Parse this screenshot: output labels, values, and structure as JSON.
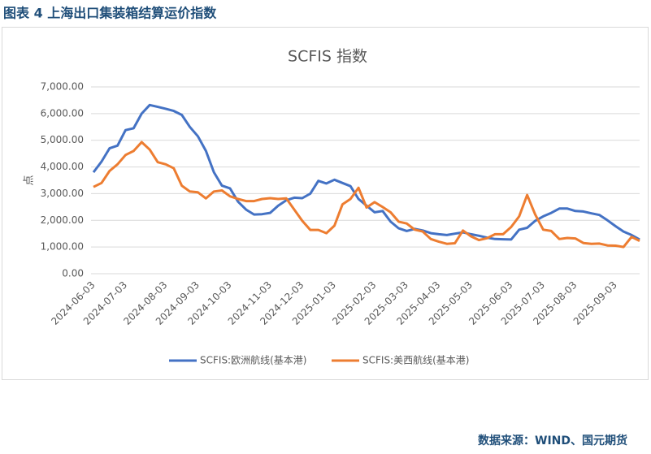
{
  "header": {
    "title": "图表 4  上海出口集装箱结算运价指数"
  },
  "source": "数据来源：WIND、国元期货",
  "chart_data": {
    "type": "line",
    "title": "SCFIS 指数",
    "y_label": "点",
    "categories": [
      "2024-06-03",
      null,
      null,
      null,
      "2024-07-03",
      null,
      null,
      null,
      null,
      "2024-08-03",
      null,
      null,
      null,
      "2024-09-03",
      null,
      null,
      null,
      "2024-10-03",
      null,
      null,
      null,
      null,
      "2024-11-03",
      null,
      null,
      null,
      "2024-12-03",
      null,
      null,
      null,
      "2025-01-03",
      null,
      null,
      null,
      null,
      "2025-02-03",
      null,
      null,
      null,
      "2025-03-03",
      null,
      null,
      null,
      "2025-04-03",
      null,
      null,
      null,
      "2025-05-03",
      null,
      null,
      null,
      null,
      "2025-06-03",
      null,
      null,
      null,
      "2025-07-03",
      null,
      null,
      null,
      "2025-08-03",
      null,
      null,
      null,
      null,
      "2025-09-03",
      null,
      null,
      null
    ],
    "series": [
      {
        "name": "SCFIS:欧洲航线(基本港)",
        "color": "#4472c4",
        "values": [
          3800,
          4200,
          4700,
          4800,
          5380,
          5450,
          6000,
          6320,
          6250,
          6180,
          6100,
          5950,
          5500,
          5150,
          4600,
          3800,
          3300,
          3200,
          2700,
          2400,
          2220,
          2230,
          2280,
          2550,
          2750,
          2850,
          2830,
          3000,
          3480,
          3380,
          3520,
          3400,
          3280,
          2800,
          2550,
          2300,
          2350,
          1950,
          1700,
          1600,
          1680,
          1620,
          1520,
          1480,
          1450,
          1500,
          1550,
          1480,
          1420,
          1350,
          1300,
          1290,
          1280,
          1650,
          1720,
          1980,
          2150,
          2280,
          2440,
          2440,
          2350,
          2330,
          2260,
          2200,
          2000,
          1780,
          1580,
          1450,
          1280
        ]
      },
      {
        "name": "SCFIS:美西航线(基本港)",
        "color": "#ed7d31",
        "values": [
          3250,
          3400,
          3850,
          4100,
          4450,
          4600,
          4930,
          4650,
          4180,
          4100,
          3950,
          3300,
          3080,
          3050,
          2820,
          3080,
          3120,
          2900,
          2800,
          2720,
          2720,
          2800,
          2830,
          2800,
          2820,
          2400,
          1980,
          1640,
          1640,
          1520,
          1800,
          2600,
          2800,
          3220,
          2480,
          2680,
          2500,
          2300,
          1950,
          1880,
          1650,
          1580,
          1300,
          1200,
          1120,
          1140,
          1620,
          1400,
          1260,
          1330,
          1480,
          1480,
          1750,
          2150,
          2950,
          2220,
          1650,
          1600,
          1300,
          1340,
          1320,
          1150,
          1120,
          1130,
          1060,
          1050,
          1000,
          1380,
          1230
        ]
      }
    ],
    "ylim": [
      0,
      7000
    ],
    "yticks": [
      {
        "value": 0,
        "label": "0.00"
      },
      {
        "value": 1000,
        "label": "1,000.00"
      },
      {
        "value": 2000,
        "label": "2,000.00"
      },
      {
        "value": 3000,
        "label": "3,000.00"
      },
      {
        "value": 4000,
        "label": "4,000.00"
      },
      {
        "value": 5000,
        "label": "5,000.00"
      },
      {
        "value": 6000,
        "label": "6,000.00"
      },
      {
        "value": 7000,
        "label": "7,000.00"
      }
    ],
    "grid": true,
    "legend": "bottom"
  }
}
